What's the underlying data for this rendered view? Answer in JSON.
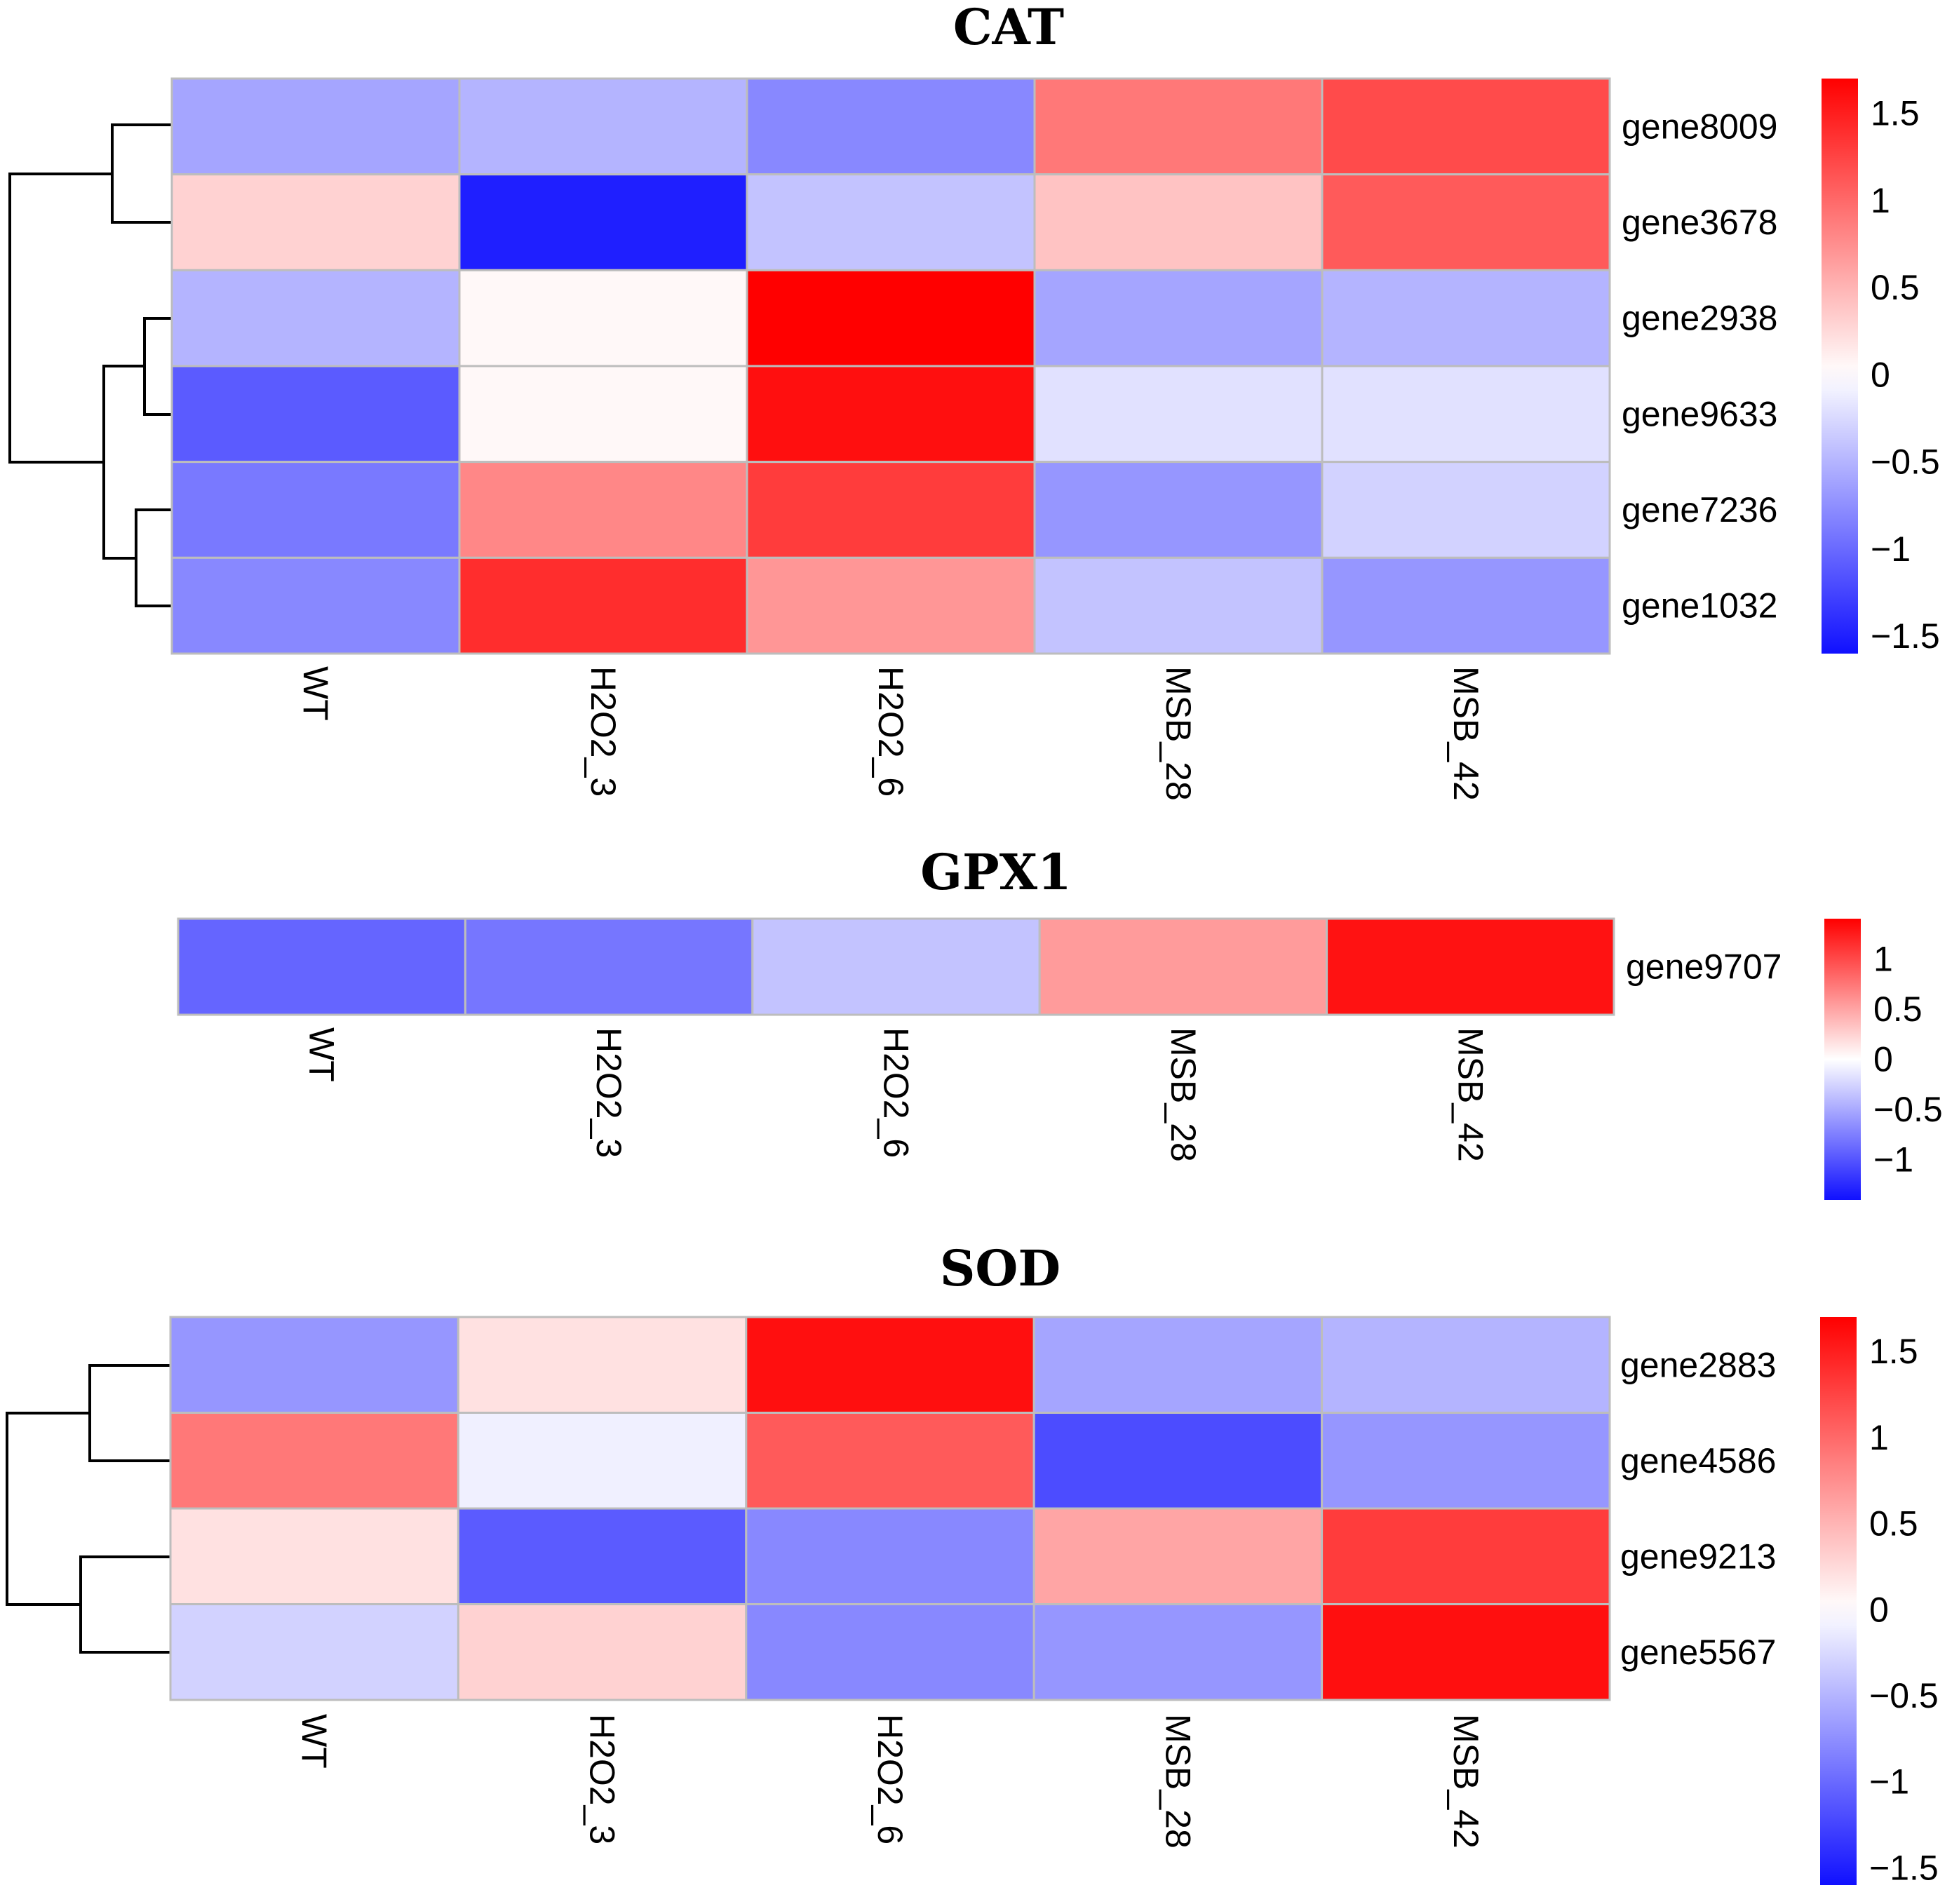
{
  "chart_data": [
    {
      "type": "heatmap",
      "title": "CAT",
      "columns": [
        "WT",
        "H2O2_3",
        "H2O2_6",
        "MSB_28",
        "MSB_42"
      ],
      "rows": [
        "gene8009",
        "gene3678",
        "gene2938",
        "gene9633",
        "gene7236",
        "gene1032"
      ],
      "values": [
        [
          -0.6,
          -0.5,
          -0.8,
          0.9,
          1.2
        ],
        [
          0.3,
          -1.5,
          -0.4,
          0.4,
          1.1
        ],
        [
          -0.5,
          0.05,
          1.7,
          -0.6,
          -0.5
        ],
        [
          -1.1,
          0.05,
          1.6,
          -0.2,
          -0.2
        ],
        [
          -0.9,
          0.8,
          1.3,
          -0.7,
          -0.3
        ],
        [
          -0.8,
          1.4,
          0.7,
          -0.4,
          -0.7
        ]
      ],
      "color_scale": {
        "low": "#1010ff",
        "mid": "#ffffff",
        "high": "#ff0000",
        "min": -1.6,
        "max": 1.7
      },
      "legend_ticks": [
        1.5,
        1,
        0.5,
        0,
        -0.5,
        -1,
        -1.5
      ],
      "row_dendrogram": true
    },
    {
      "type": "heatmap",
      "title": "GPX1",
      "columns": [
        "WT",
        "H2O2_3",
        "H2O2_6",
        "MSB_28",
        "MSB_42"
      ],
      "rows": [
        "gene9707"
      ],
      "values": [
        [
          -0.9,
          -0.8,
          -0.35,
          0.55,
          1.3
        ]
      ],
      "color_scale": {
        "low": "#1010ff",
        "mid": "#ffffff",
        "high": "#ff0000",
        "min": -1.4,
        "max": 1.4
      },
      "legend_ticks": [
        1,
        0.5,
        0,
        -0.5,
        -1
      ],
      "row_dendrogram": false
    },
    {
      "type": "heatmap",
      "title": "SOD",
      "columns": [
        "WT",
        "H2O2_3",
        "H2O2_6",
        "MSB_28",
        "MSB_42"
      ],
      "rows": [
        "gene2883",
        "gene4586",
        "gene9213",
        "gene5567"
      ],
      "values": [
        [
          -0.7,
          0.2,
          1.6,
          -0.6,
          -0.5
        ],
        [
          0.9,
          -0.1,
          1.1,
          -1.2,
          -0.7
        ],
        [
          0.2,
          -1.1,
          -0.8,
          0.6,
          1.3
        ],
        [
          -0.3,
          0.3,
          -0.8,
          -0.7,
          1.6
        ]
      ],
      "color_scale": {
        "low": "#1010ff",
        "mid": "#ffffff",
        "high": "#ff0000",
        "min": -1.6,
        "max": 1.7
      },
      "legend_ticks": [
        1.5,
        1,
        0.5,
        0,
        -0.5,
        -1,
        -1.5
      ],
      "row_dendrogram": true
    }
  ]
}
